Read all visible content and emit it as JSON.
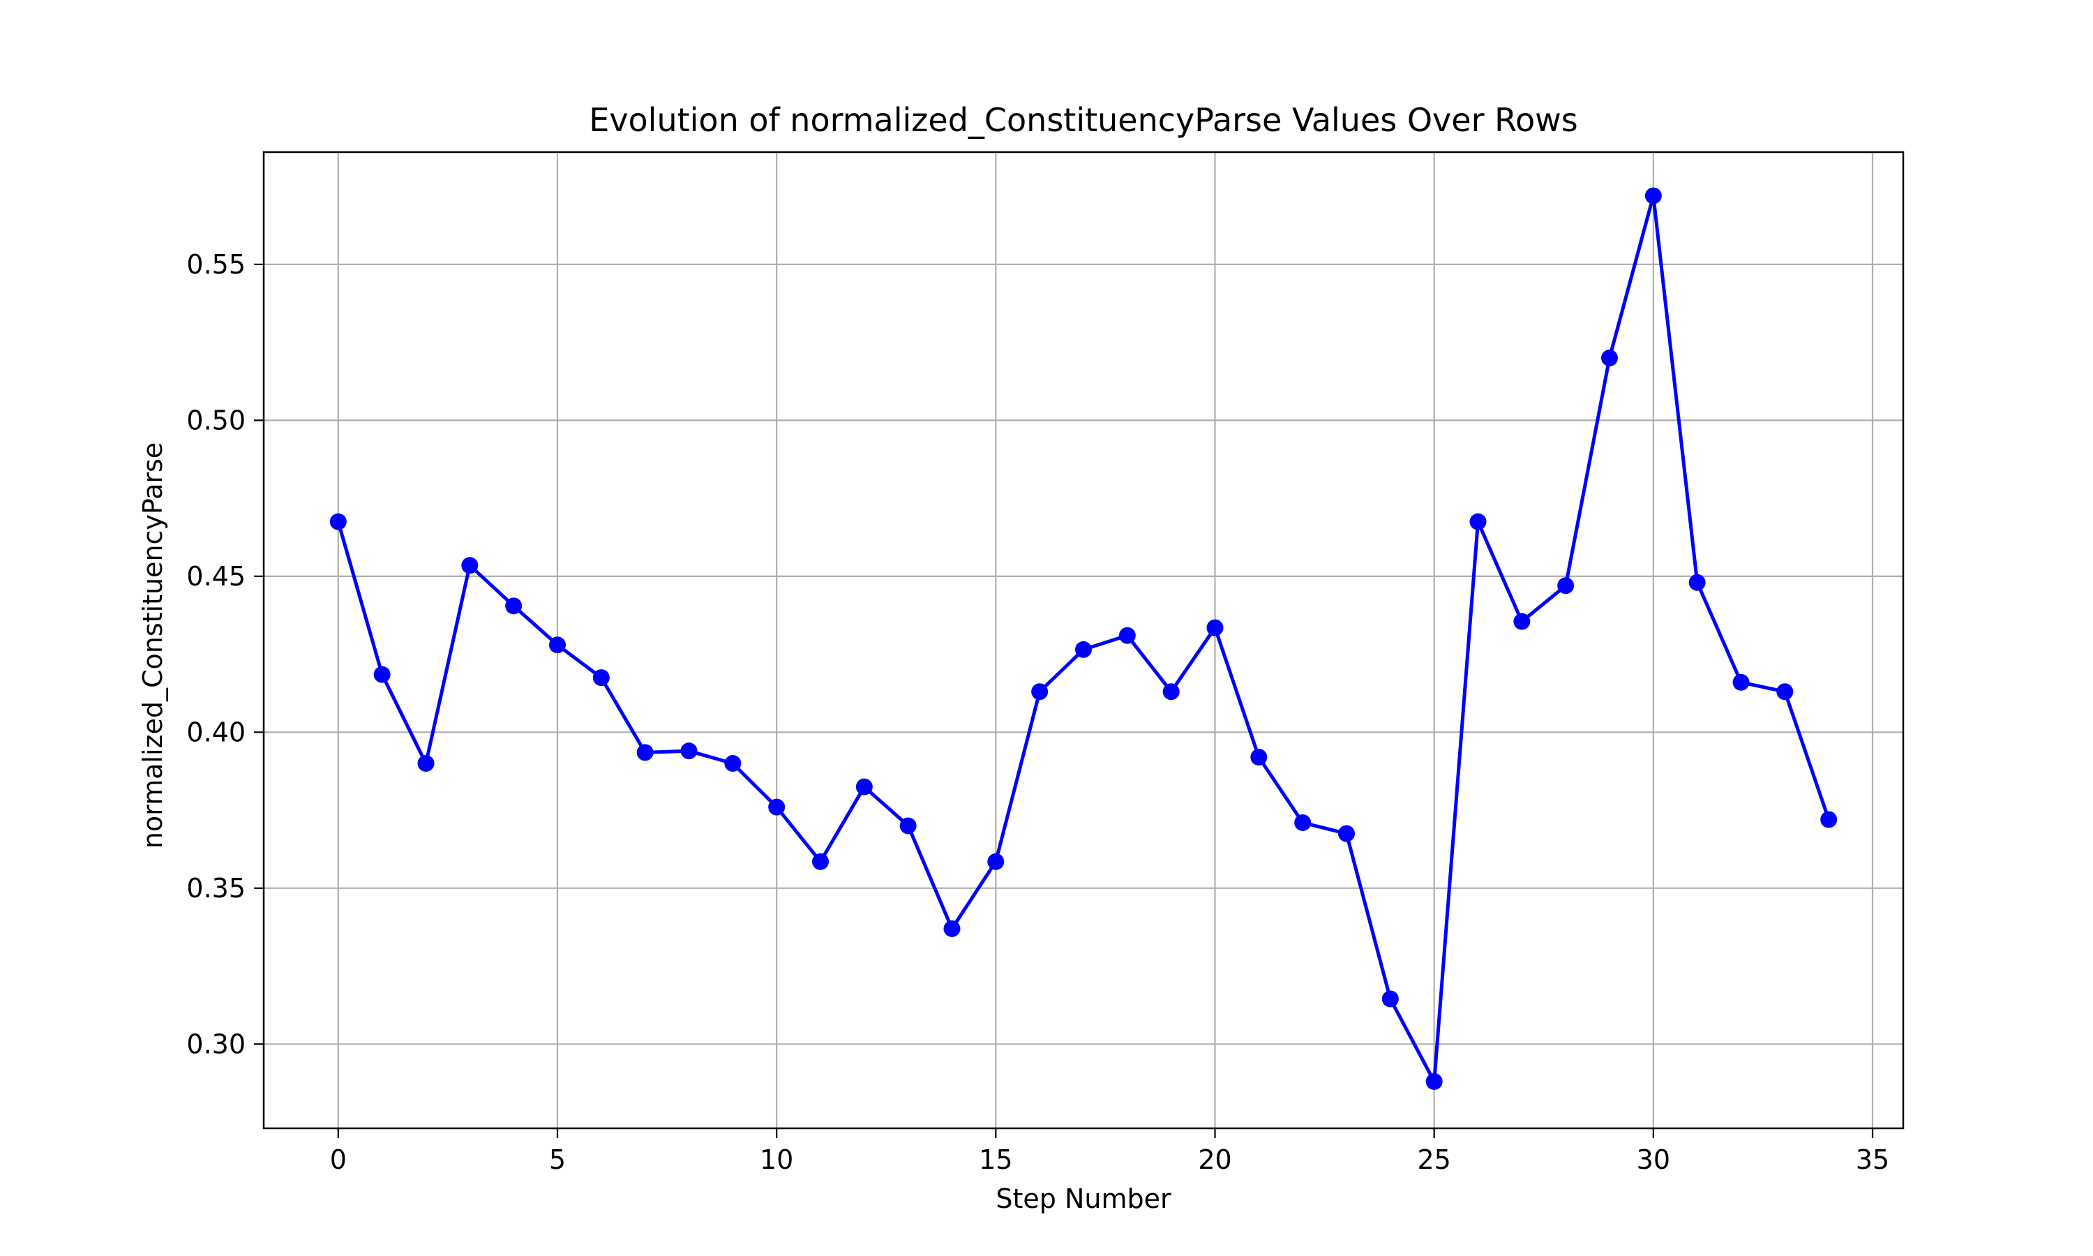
{
  "chart_data": {
    "type": "line",
    "title": "Evolution of normalized_ConstituencyParse Values Over Rows",
    "xlabel": "Step Number",
    "ylabel": "normalized_ConstituencyParse",
    "xlim": [
      -1.7,
      35.7
    ],
    "ylim": [
      0.273,
      0.586
    ],
    "xticks": [
      0,
      5,
      10,
      15,
      20,
      25,
      30,
      35
    ],
    "yticks": [
      0.3,
      0.35,
      0.4,
      0.45,
      0.5,
      0.55
    ],
    "xtick_labels": [
      "0",
      "5",
      "10",
      "15",
      "20",
      "25",
      "30",
      "35"
    ],
    "ytick_labels": [
      "0.30",
      "0.35",
      "0.40",
      "0.45",
      "0.50",
      "0.55"
    ],
    "grid": true,
    "line_color": "#0000ff",
    "marker": "circle",
    "series": [
      {
        "x": [
          0,
          1,
          2,
          3,
          4,
          5,
          6,
          7,
          8,
          9,
          10,
          11,
          12,
          13,
          14,
          15,
          16,
          17,
          18,
          19,
          20,
          21,
          22,
          23,
          24,
          25,
          26,
          27,
          28,
          29,
          30,
          31,
          32,
          33,
          34
        ],
        "values": [
          0.4675,
          0.4185,
          0.39,
          0.4535,
          0.4405,
          0.428,
          0.4175,
          0.3935,
          0.394,
          0.39,
          0.376,
          0.3585,
          0.3825,
          0.37,
          0.337,
          0.3585,
          0.413,
          0.4265,
          0.431,
          0.413,
          0.4335,
          0.392,
          0.371,
          0.3675,
          0.3145,
          0.288,
          0.4675,
          0.4355,
          0.447,
          0.52,
          0.572,
          0.448,
          0.416,
          0.413,
          0.372
        ]
      }
    ]
  }
}
